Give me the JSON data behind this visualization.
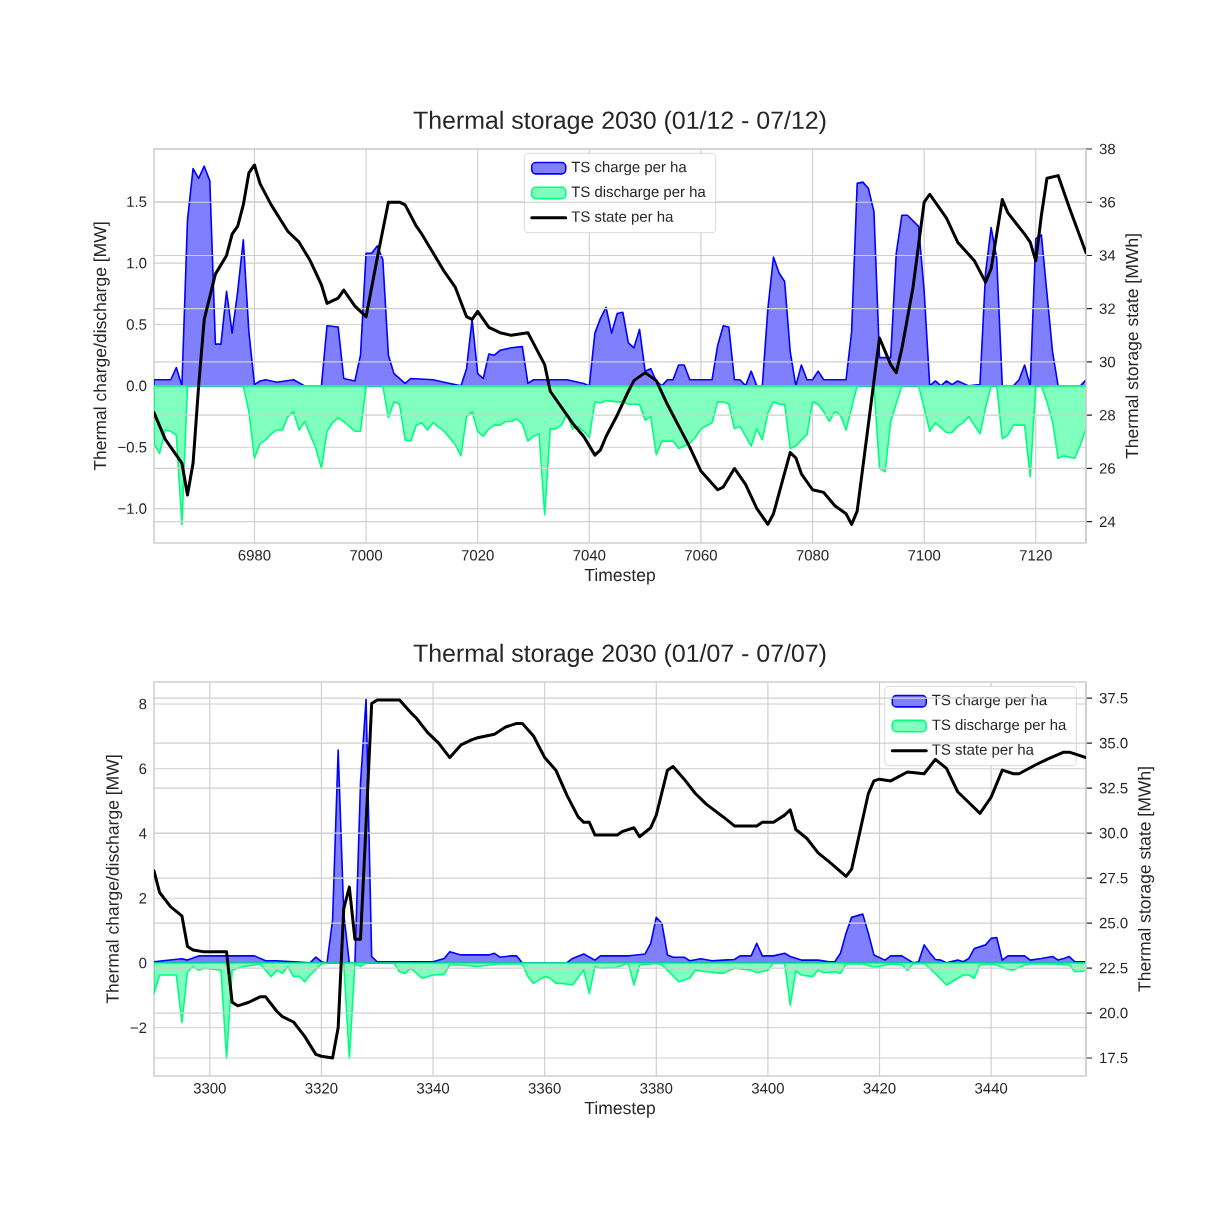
{
  "chart_data": [
    {
      "type": "area",
      "title": "Thermal storage 2030 (01/12 - 07/12)",
      "xlabel": "Timestep",
      "ylabel": "Thermal charge/discharge [MW]",
      "y2label": "Thermal storage state [MWh]",
      "xlim": [
        6962,
        7129
      ],
      "xticks": [
        6980,
        7000,
        7020,
        7040,
        7060,
        7080,
        7100,
        7120
      ],
      "ylim": [
        -1.28,
        1.93
      ],
      "yticks": [
        {
          "value": -1,
          "label": "−1.0"
        },
        {
          "value": -0.5,
          "label": "−0.5"
        },
        {
          "value": 0,
          "label": "0.0"
        },
        {
          "value": 0.5,
          "label": "0.5"
        },
        {
          "value": 1,
          "label": "1.0"
        },
        {
          "value": 1.5,
          "label": "1.5"
        }
      ],
      "y2lim": [
        23.2,
        38
      ],
      "y2ticks": [
        24,
        26,
        28,
        30,
        32,
        34,
        36,
        38
      ],
      "grid": true,
      "legend": "top",
      "series": [
        {
          "name": "TS charge per ha",
          "color": "#8080ff",
          "x": [
            6962,
            6965,
            6966,
            6967,
            6968,
            6969,
            6970,
            6971,
            6972,
            6973,
            6974,
            6975,
            6976,
            6977,
            6978,
            6979,
            6980,
            6981,
            6982,
            6984,
            6987,
            6989,
            6992,
            6993,
            6995,
            6996,
            6998,
            6999,
            7000,
            7001,
            7002,
            7003,
            7004,
            7005,
            7007,
            7008,
            7012,
            7014,
            7017,
            7018,
            7019,
            7020,
            7021,
            7022,
            7023,
            7024,
            7026,
            7028,
            7029,
            7030,
            7036,
            7039,
            7040,
            7041,
            7042,
            7043,
            7044,
            7045,
            7046,
            7047,
            7048,
            7049,
            7050,
            7051,
            7052,
            7053,
            7054,
            7055,
            7056,
            7057,
            7058,
            7062,
            7063,
            7064,
            7065,
            7066,
            7067,
            7068,
            7069,
            7070,
            7071,
            7072,
            7073,
            7074,
            7075,
            7076,
            7077,
            7078,
            7079,
            7080,
            7081,
            7082,
            7086,
            7087,
            7088,
            7089,
            7090,
            7091,
            7092,
            7093,
            7094,
            7095,
            7096,
            7097,
            7099,
            7100,
            7101,
            7102,
            7103,
            7104,
            7105,
            7106,
            7108,
            7110,
            7111,
            7112,
            7113,
            7114,
            7116,
            7117,
            7118,
            7119,
            7120,
            7121,
            7123,
            7124,
            7128,
            7129
          ],
          "values": [
            0.05,
            0.05,
            0.15,
            0,
            1.35,
            1.77,
            1.69,
            1.79,
            1.67,
            0.34,
            0.34,
            0.77,
            0.43,
            0.77,
            1.19,
            0.44,
            0.01,
            0.04,
            0.05,
            0.03,
            0.05,
            0,
            0,
            0.49,
            0.48,
            0.06,
            0.04,
            0.25,
            1.08,
            1.08,
            1.14,
            1.03,
            0.25,
            0.1,
            0.02,
            0.06,
            0.05,
            0.03,
            0,
            0.14,
            0.54,
            0.1,
            0.06,
            0.26,
            0.25,
            0.29,
            0.31,
            0.32,
            0.02,
            0.05,
            0.05,
            0.02,
            0,
            0.43,
            0.55,
            0.64,
            0.43,
            0.59,
            0.6,
            0.35,
            0.31,
            0.46,
            0.12,
            0.14,
            0.04,
            0,
            0.05,
            0.05,
            0.17,
            0.17,
            0.05,
            0.05,
            0.33,
            0.49,
            0.48,
            0.05,
            0.05,
            0,
            0.12,
            0,
            0,
            0.63,
            1.05,
            0.92,
            0.85,
            0.28,
            0,
            0.17,
            0.05,
            0.05,
            0.12,
            0.05,
            0.05,
            0.44,
            1.65,
            1.66,
            1.61,
            1.42,
            0.23,
            0.23,
            0.23,
            1.08,
            1.39,
            1.39,
            1.3,
            0.77,
            0,
            0.04,
            0,
            0.04,
            0.01,
            0.04,
            0,
            0.01,
            0.92,
            1.29,
            1.04,
            0,
            0,
            0.05,
            0.17,
            0,
            1.2,
            1.23,
            0.28,
            0,
            0,
            0.05
          ]
        },
        {
          "name": "TS discharge per ha",
          "color": "#80ffbf",
          "x": [
            6962,
            6963,
            6964,
            6965,
            6966,
            6967,
            6968,
            6978,
            6979,
            6980,
            6981,
            6982,
            6983,
            6984,
            6985,
            6986,
            6987,
            6988,
            6989,
            6990,
            6991,
            6992,
            6993,
            6994,
            6995,
            6996,
            6997,
            6998,
            6999,
            7000,
            7003,
            7004,
            7005,
            7006,
            7007,
            7008,
            7009,
            7010,
            7011,
            7012,
            7014,
            7016,
            7017,
            7018,
            7019,
            7020,
            7021,
            7022,
            7023,
            7024,
            7025,
            7026,
            7027,
            7028,
            7029,
            7030,
            7031,
            7032,
            7033,
            7034,
            7035,
            7036,
            7037,
            7038,
            7039,
            7040,
            7041,
            7042,
            7043,
            7045,
            7046,
            7047,
            7049,
            7050,
            7051,
            7052,
            7053,
            7055,
            7056,
            7058,
            7059,
            7060,
            7062,
            7063,
            7064,
            7065,
            7066,
            7067,
            7068,
            7069,
            7070,
            7071,
            7072,
            7073,
            7074,
            7075,
            7076,
            7077,
            7078,
            7079,
            7080,
            7081,
            7082,
            7083,
            7084,
            7085,
            7086,
            7088,
            7091,
            7092,
            7093,
            7094,
            7096,
            7099,
            7100,
            7101,
            7102,
            7103,
            7104,
            7105,
            7106,
            7107,
            7108,
            7109,
            7110,
            7111,
            7112,
            7113,
            7114,
            7115,
            7116,
            7118,
            7119,
            7120,
            7121,
            7122,
            7123,
            7124,
            7125,
            7126,
            7127,
            7128,
            7129
          ],
          "values": [
            -0.47,
            -0.55,
            -0.36,
            -0.37,
            -0.4,
            -1.13,
            0,
            0,
            -0.21,
            -0.59,
            -0.47,
            -0.44,
            -0.39,
            -0.36,
            -0.36,
            -0.25,
            -0.21,
            -0.36,
            -0.29,
            -0.4,
            -0.51,
            -0.67,
            -0.37,
            -0.3,
            -0.26,
            -0.29,
            -0.33,
            -0.37,
            -0.37,
            0,
            0,
            -0.26,
            -0.13,
            -0.15,
            -0.44,
            -0.45,
            -0.32,
            -0.3,
            -0.36,
            -0.3,
            -0.37,
            -0.48,
            -0.57,
            -0.25,
            -0.21,
            -0.37,
            -0.41,
            -0.35,
            -0.32,
            -0.32,
            -0.29,
            -0.29,
            -0.27,
            -0.31,
            -0.45,
            -0.41,
            -0.39,
            -1.05,
            -0.35,
            -0.35,
            -0.32,
            -0.23,
            -0.35,
            -0.33,
            -0.37,
            -0.42,
            -0.13,
            -0.14,
            -0.12,
            -0.13,
            -0.13,
            -0.15,
            -0.15,
            -0.28,
            -0.25,
            -0.56,
            -0.45,
            -0.45,
            -0.51,
            -0.47,
            -0.42,
            -0.35,
            -0.3,
            -0.13,
            -0.13,
            -0.15,
            -0.35,
            -0.33,
            -0.41,
            -0.49,
            -0.35,
            -0.44,
            -0.22,
            -0.13,
            -0.15,
            -0.15,
            -0.51,
            -0.49,
            -0.44,
            -0.4,
            -0.13,
            -0.15,
            -0.21,
            -0.29,
            -0.21,
            -0.24,
            -0.36,
            0,
            0,
            -0.67,
            -0.7,
            -0.29,
            0,
            0,
            -0.18,
            -0.37,
            -0.3,
            -0.34,
            -0.38,
            -0.38,
            -0.33,
            -0.3,
            -0.25,
            -0.32,
            -0.39,
            -0.18,
            0,
            0,
            -0.43,
            -0.4,
            -0.32,
            -0.32,
            -0.74,
            0,
            0,
            -0.13,
            -0.29,
            -0.59,
            -0.57,
            -0.58,
            -0.59,
            -0.48,
            -0.35
          ]
        },
        {
          "name": "TS state per ha",
          "type": "line",
          "axis": "y2",
          "color": "#000000",
          "x": [
            6962,
            6964,
            6967,
            6968,
            6969,
            6970,
            6971,
            6973,
            6975,
            6976,
            6977,
            6978,
            6979,
            6980,
            6981,
            6983,
            6986,
            6988,
            6990,
            6992,
            6993,
            6995,
            6996,
            6998,
            7000,
            7002,
            7004,
            7006,
            7007,
            7009,
            7010,
            7012,
            7014,
            7016,
            7018,
            7019,
            7020,
            7022,
            7024,
            7026,
            7029,
            7030,
            7032,
            7033,
            7036,
            7037,
            7039,
            7041,
            7042,
            7043,
            7045,
            7047,
            7048,
            7050,
            7052,
            7054,
            7056,
            7058,
            7060,
            7063,
            7064,
            7066,
            7068,
            7070,
            7072,
            7073,
            7076,
            7077,
            7078,
            7080,
            7082,
            7084,
            7086,
            7087,
            7088,
            7092,
            7094,
            7095,
            7096,
            7098,
            7100,
            7101,
            7104,
            7106,
            7109,
            7111,
            7112,
            7114,
            7115,
            7118,
            7119,
            7120,
            7121,
            7122,
            7124,
            7126,
            7129
          ],
          "values": [
            28.1,
            27.1,
            26.2,
            25.0,
            26.2,
            29.1,
            31.6,
            33.3,
            34.0,
            34.8,
            35.1,
            35.9,
            37.1,
            37.4,
            36.7,
            35.9,
            34.9,
            34.5,
            33.8,
            32.9,
            32.2,
            32.4,
            32.7,
            32.1,
            31.7,
            33.9,
            36.0,
            36.0,
            35.9,
            35.1,
            34.8,
            34.1,
            33.4,
            32.8,
            31.7,
            31.6,
            31.9,
            31.3,
            31.1,
            31.0,
            31.1,
            30.7,
            29.9,
            28.9,
            28.0,
            27.7,
            27.2,
            26.5,
            26.7,
            27.2,
            28.0,
            28.9,
            29.3,
            29.6,
            29.3,
            28.4,
            27.6,
            26.8,
            25.9,
            25.2,
            25.3,
            26.0,
            25.4,
            24.5,
            23.9,
            24.3,
            26.6,
            26.4,
            25.8,
            25.2,
            25.1,
            24.6,
            24.3,
            23.9,
            24.4,
            30.9,
            29.9,
            29.6,
            30.5,
            32.8,
            36.0,
            36.3,
            35.4,
            34.5,
            33.8,
            33.0,
            33.5,
            36.1,
            35.6,
            34.8,
            34.5,
            33.8,
            35.5,
            36.9,
            37.0,
            35.8,
            34.1
          ]
        }
      ]
    },
    {
      "type": "area",
      "title": "Thermal storage 2030 (01/07 - 07/07)",
      "xlabel": "Timestep",
      "ylabel": "Thermal charge/discharge [MW]",
      "y2label": "Thermal storage state [MWh]",
      "xlim": [
        3290,
        3457
      ],
      "xticks": [
        3300,
        3320,
        3340,
        3360,
        3380,
        3400,
        3420,
        3440
      ],
      "ylim": [
        -3.49,
        8.68
      ],
      "yticks": [
        {
          "value": -2,
          "label": "−2"
        },
        0,
        2,
        4,
        6,
        8
      ],
      "y2lim": [
        16.5,
        38.4
      ],
      "y2ticks": [
        17.5,
        {
          "value": 20,
          "label": "20.0"
        },
        22.5,
        {
          "value": 25,
          "label": "25.0"
        },
        27.5,
        {
          "value": 30,
          "label": "30.0"
        },
        32.5,
        {
          "value": 35,
          "label": "35.0"
        },
        37.5
      ],
      "grid": true,
      "legend": "top right",
      "series": [
        {
          "name": "TS charge per ha",
          "color": "#8080ff",
          "x": [
            3290,
            3292,
            3295,
            3296,
            3298,
            3303,
            3308,
            3310,
            3312,
            3318,
            3319,
            3320,
            3321,
            3322,
            3323,
            3324,
            3325,
            3326,
            3327,
            3328,
            3329,
            3330,
            3340,
            3342,
            3343,
            3345,
            3350,
            3351,
            3352,
            3354,
            3355,
            3356,
            3364,
            3365,
            3367,
            3369,
            3370,
            3372,
            3375,
            3376,
            3378,
            3379,
            3380,
            3381,
            3382,
            3383,
            3385,
            3386,
            3388,
            3390,
            3392,
            3394,
            3395,
            3397,
            3398,
            3399,
            3401,
            3403,
            3404,
            3406,
            3409,
            3411,
            3412,
            3413,
            3414,
            3415,
            3417,
            3418,
            3419,
            3421,
            3422,
            3424,
            3426,
            3427,
            3428,
            3429,
            3430,
            3431,
            3432,
            3434,
            3435,
            3436,
            3437,
            3439,
            3440,
            3441,
            3442,
            3443,
            3446,
            3447,
            3449,
            3451,
            3452,
            3453,
            3454,
            3455,
            3457
          ],
          "values": [
            0.04,
            0.08,
            0.13,
            0.09,
            0.22,
            0.22,
            0.22,
            0.07,
            0.07,
            0.01,
            0.18,
            0.04,
            0,
            1.33,
            6.58,
            1.53,
            0,
            0,
            5.55,
            8.15,
            0.2,
            0.04,
            0.04,
            0.14,
            0.35,
            0.25,
            0.25,
            0.3,
            0.18,
            0.22,
            0.22,
            0,
            0.01,
            0.14,
            0.28,
            0.09,
            0.22,
            0.22,
            0.22,
            0.24,
            0.28,
            0.61,
            1.41,
            1.23,
            0.25,
            0.18,
            0.18,
            0.07,
            0.13,
            0.07,
            0.09,
            0.11,
            0.22,
            0.22,
            0.61,
            0.22,
            0.22,
            0.3,
            0.2,
            0.09,
            0.09,
            0.04,
            0.04,
            0.3,
            0.92,
            1.41,
            1.51,
            0.92,
            0.25,
            0.09,
            0.22,
            0.22,
            0.01,
            0.04,
            0.56,
            0.32,
            0.11,
            0.09,
            0.01,
            0.09,
            0.04,
            0.14,
            0.45,
            0.56,
            0.76,
            0.79,
            0.09,
            0.22,
            0.22,
            0.09,
            0.14,
            0.2,
            0.09,
            0.14,
            0.2,
            0.04,
            0.04
          ]
        },
        {
          "name": "TS discharge per ha",
          "color": "#80ffbf",
          "x": [
            3290,
            3291,
            3294,
            3295,
            3296,
            3297,
            3298,
            3299,
            3302,
            3303,
            3304,
            3306,
            3308,
            3309,
            3310,
            3311,
            3312,
            3313,
            3314,
            3315,
            3316,
            3317,
            3318,
            3320,
            3321,
            3324,
            3325,
            3326,
            3327,
            3328,
            3333,
            3334,
            3335,
            3336,
            3338,
            3340,
            3342,
            3343,
            3345,
            3348,
            3350,
            3352,
            3356,
            3357,
            3358,
            3360,
            3361,
            3362,
            3363,
            3365,
            3367,
            3368,
            3369,
            3370,
            3373,
            3374,
            3375,
            3376,
            3377,
            3380,
            3381,
            3382,
            3384,
            3386,
            3387,
            3389,
            3392,
            3394,
            3397,
            3398,
            3400,
            3401,
            3403,
            3404,
            3405,
            3406,
            3408,
            3409,
            3410,
            3412,
            3413,
            3414,
            3417,
            3419,
            3422,
            3424,
            3425,
            3426,
            3428,
            3430,
            3432,
            3433,
            3435,
            3436,
            3437,
            3438,
            3440,
            3441,
            3443,
            3444,
            3446,
            3447,
            3451,
            3454,
            3455,
            3457
          ],
          "values": [
            -0.94,
            -0.37,
            -0.37,
            -1.84,
            -0.27,
            -0.11,
            -0.22,
            -0.16,
            -0.22,
            -2.95,
            -0.22,
            -0.11,
            -0.06,
            -0.03,
            -0.22,
            -0.42,
            -0.22,
            -0.32,
            -0.11,
            -0.42,
            -0.4,
            -0.58,
            -0.37,
            -0.03,
            0,
            0,
            -2.95,
            -0.03,
            -0.11,
            0,
            0,
            -0.27,
            -0.32,
            -0.16,
            -0.47,
            -0.37,
            -0.35,
            -0.06,
            -0.06,
            -0.11,
            -0.06,
            -0.03,
            -0.03,
            -0.42,
            -0.63,
            -0.42,
            -0.47,
            -0.63,
            -0.63,
            -0.68,
            -0.22,
            -0.94,
            -0.11,
            -0.16,
            -0.13,
            -0.06,
            -0.01,
            -0.68,
            -0.06,
            -0.01,
            -0.06,
            -0.22,
            -0.58,
            -0.47,
            -0.22,
            -0.27,
            -0.32,
            -0.16,
            -0.22,
            -0.3,
            -0.22,
            -0.01,
            -0.01,
            -1.3,
            -0.24,
            -0.37,
            -0.42,
            -0.22,
            -0.3,
            -0.27,
            -0.32,
            -0.03,
            -0.03,
            -0.13,
            -0.03,
            -0.06,
            -0.22,
            -0.03,
            -0.01,
            -0.32,
            -0.68,
            -0.58,
            -0.37,
            -0.37,
            -0.47,
            -0.06,
            -0.03,
            -0.06,
            -0.2,
            -0.22,
            -0.06,
            -0.03,
            -0.03,
            -0.06,
            -0.27,
            -0.24
          ]
        },
        {
          "name": "TS state per ha",
          "type": "line",
          "axis": "y2",
          "color": "#000000",
          "x": [
            3290,
            3291,
            3293,
            3295,
            3296,
            3297,
            3299,
            3303,
            3304,
            3305,
            3307,
            3309,
            3310,
            3312,
            3313,
            3315,
            3317,
            3319,
            3320,
            3322,
            3323,
            3324,
            3325,
            3326,
            3327,
            3328,
            3329,
            3330,
            3334,
            3336,
            3337,
            3339,
            3341,
            3343,
            3345,
            3347,
            3348,
            3351,
            3353,
            3355,
            3356,
            3358,
            3360,
            3362,
            3364,
            3366,
            3367,
            3368,
            3369,
            3373,
            3374,
            3376,
            3377,
            3379,
            3380,
            3382,
            3383,
            3385,
            3387,
            3389,
            3392,
            3394,
            3398,
            3399,
            3401,
            3403,
            3404,
            3405,
            3407,
            3409,
            3411,
            3414,
            3415,
            3418,
            3419,
            3420,
            3422,
            3425,
            3428,
            3430,
            3432,
            3434,
            3436,
            3438,
            3440,
            3442,
            3444,
            3445,
            3448,
            3450,
            3453,
            3454,
            3457
          ],
          "values": [
            27.9,
            26.7,
            25.9,
            25.4,
            23.7,
            23.5,
            23.4,
            23.4,
            20.6,
            20.4,
            20.6,
            20.9,
            20.9,
            20.1,
            19.8,
            19.5,
            18.7,
            17.7,
            17.6,
            17.5,
            19.2,
            25.8,
            27.0,
            24.1,
            24.1,
            30.5,
            37.2,
            37.4,
            37.4,
            36.7,
            36.4,
            35.6,
            35.0,
            34.2,
            34.9,
            35.2,
            35.3,
            35.5,
            35.9,
            36.1,
            36.1,
            35.4,
            34.2,
            33.5,
            32.1,
            30.9,
            30.6,
            30.6,
            29.9,
            29.9,
            30.1,
            30.3,
            29.8,
            30.3,
            31.0,
            33.5,
            33.7,
            33.0,
            32.2,
            31.6,
            30.9,
            30.4,
            30.4,
            30.6,
            30.6,
            31.0,
            31.3,
            30.2,
            29.7,
            28.9,
            28.4,
            27.6,
            28.0,
            32.2,
            32.9,
            33.0,
            32.9,
            33.4,
            33.3,
            34.1,
            33.6,
            32.3,
            31.7,
            31.1,
            32.0,
            33.5,
            33.3,
            33.3,
            33.8,
            34.1,
            34.5,
            34.5,
            34.2
          ]
        }
      ]
    }
  ]
}
